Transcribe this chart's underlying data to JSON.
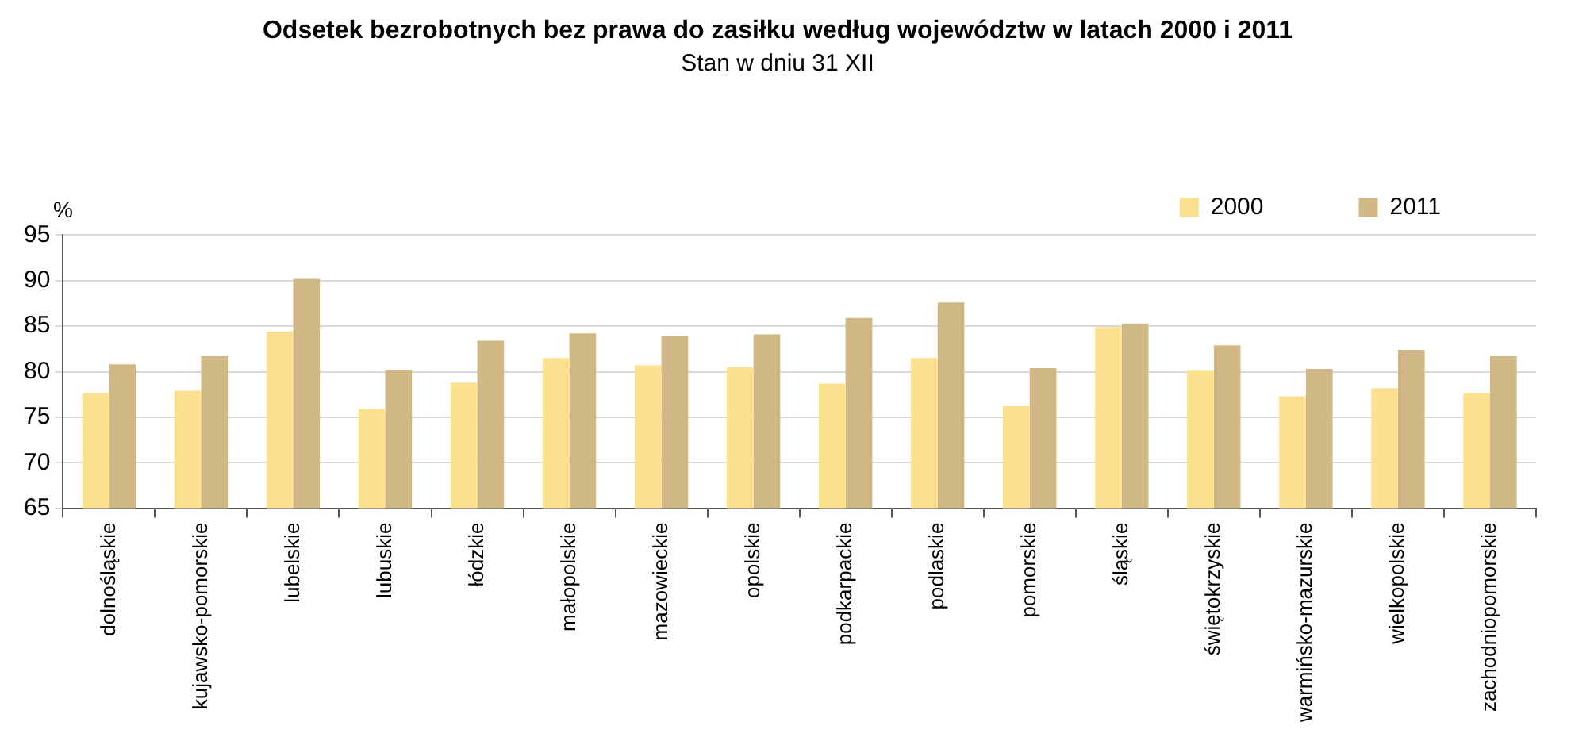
{
  "chart_data": {
    "type": "bar",
    "title": "Odsetek bezrobotnych bez prawa do zasiłku według województw w latach 2000 i 2011",
    "subtitle": "Stan w dniu 31 XII",
    "ylabel": "%",
    "categories": [
      "dolnośląskie",
      "kujawsko-pomorskie",
      "lubelskie",
      "lubuskie",
      "łódzkie",
      "małopolskie",
      "mazowieckie",
      "opolskie",
      "podkarpackie",
      "podlaskie",
      "pomorskie",
      "śląskie",
      "świętokrzyskie",
      "warmińsko-mazurskie",
      "wielkopolskie",
      "zachodniopomorskie"
    ],
    "series": [
      {
        "name": "2000",
        "color": "#fbe08f",
        "values": [
          77.7,
          77.9,
          84.4,
          75.9,
          78.8,
          81.5,
          80.7,
          80.5,
          78.7,
          81.5,
          76.2,
          84.9,
          80.1,
          77.3,
          78.2,
          77.7
        ]
      },
      {
        "name": "2011",
        "color": "#cfb886",
        "values": [
          80.8,
          81.7,
          90.2,
          80.2,
          83.4,
          84.2,
          83.9,
          84.1,
          85.9,
          87.6,
          80.4,
          85.3,
          82.9,
          80.3,
          82.4,
          81.7
        ]
      }
    ],
    "ylim": [
      65,
      95
    ],
    "yticks": [
      65,
      70,
      75,
      80,
      85,
      90,
      95
    ],
    "grid": "y",
    "legend": "top right"
  }
}
